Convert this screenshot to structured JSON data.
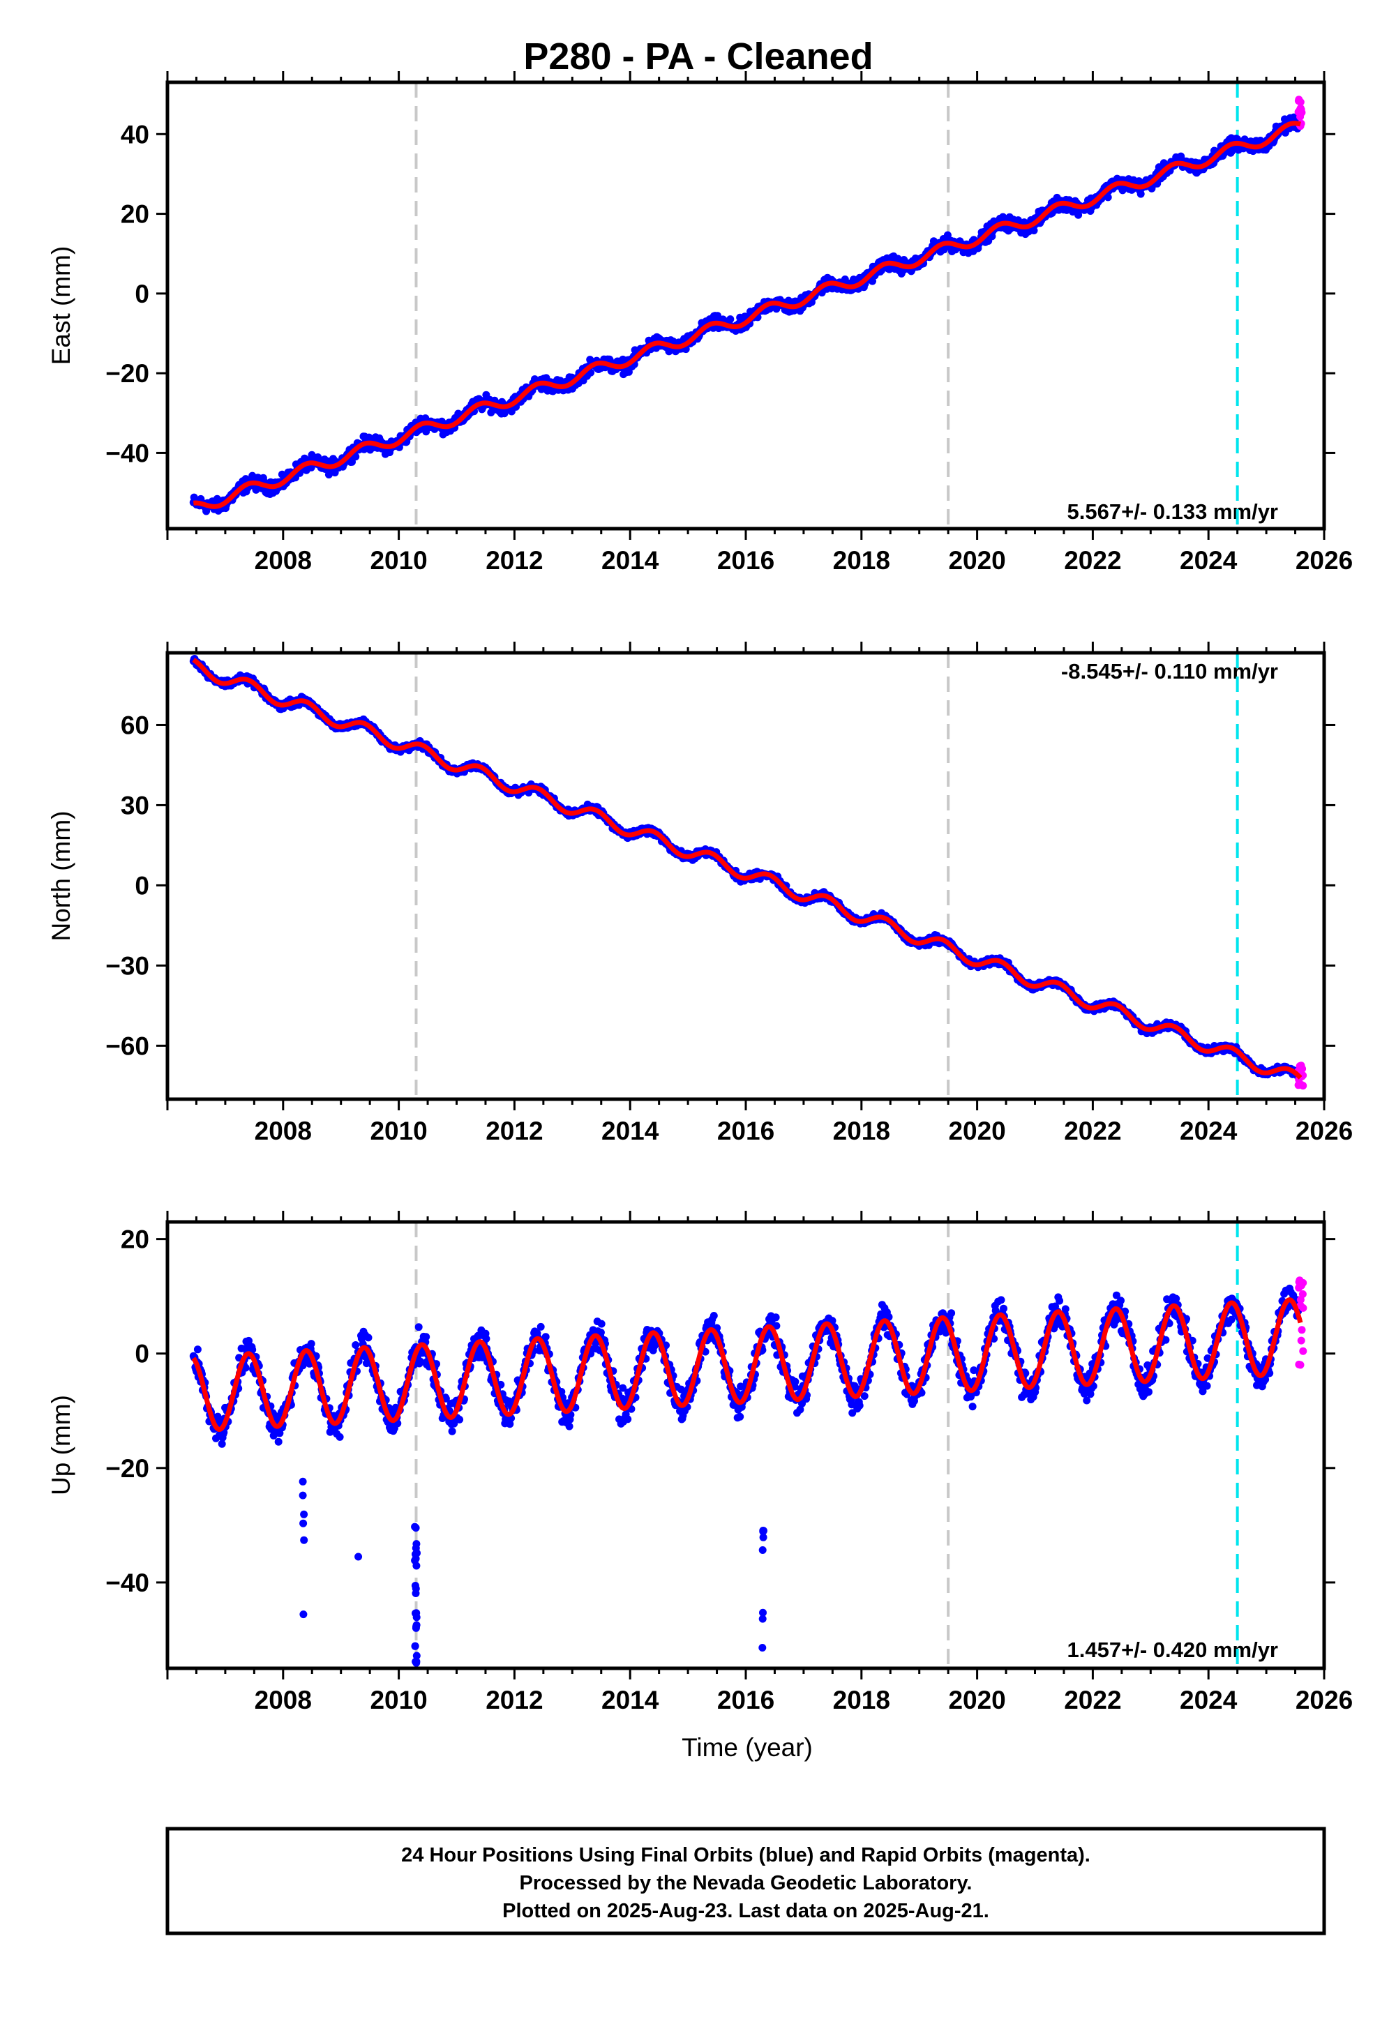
{
  "chart_data": {
    "type": "scatter",
    "title": "P280  - PA - Cleaned",
    "xlabel": "Time (year)",
    "xlim": [
      2006.0,
      2026.0
    ],
    "x_ticks": [
      "2008",
      "2010",
      "2012",
      "2014",
      "2016",
      "2018",
      "2020",
      "2022",
      "2024",
      "2026"
    ],
    "vertical_lines": [
      {
        "x": 2010.3,
        "color": "#c8c8c8"
      },
      {
        "x": 2019.5,
        "color": "#c8c8c8"
      },
      {
        "x": 2024.5,
        "color": "#00e5ee"
      }
    ],
    "colors": {
      "final": "#0000ff",
      "rapid": "#ff00ff",
      "model": "#ff0000",
      "frame": "#000000"
    },
    "panels": [
      {
        "ylabel": "East (mm)",
        "ylim": [
          -59,
          53
        ],
        "y_ticks": [
          "40",
          "20",
          "0",
          "−20",
          "−40"
        ],
        "y_tick_values": [
          40,
          20,
          0,
          -20,
          -40
        ],
        "rate": "5.567+/- 0.133 mm/yr",
        "rate_pos": "bottom-right",
        "trend": {
          "start": [
            2006.45,
            -54
          ],
          "end": [
            2025.6,
            42
          ]
        },
        "seasonal_amplitude": 1.5,
        "scatter_spread": 2.5,
        "rapid": {
          "x_start": 2025.55,
          "x_end": 2025.65,
          "y_range": [
            42,
            49
          ]
        }
      },
      {
        "ylabel": "North (mm)",
        "ylim": [
          -80,
          87
        ],
        "y_ticks": [
          "60",
          "30",
          "0",
          "−30",
          "−60"
        ],
        "y_tick_values": [
          60,
          30,
          0,
          -30,
          -60
        ],
        "rate": "-8.545+/- 0.110 mm/yr",
        "rate_pos": "top-right",
        "trend": {
          "start": [
            2006.45,
            82
          ],
          "end": [
            2025.6,
            -73
          ]
        },
        "seasonal_amplitude": 2.5,
        "scatter_spread": 2.0,
        "rapid": {
          "x_start": 2025.55,
          "x_end": 2025.65,
          "y_range": [
            -75,
            -67
          ]
        }
      },
      {
        "ylabel": "Up (mm)",
        "ylim": [
          -55,
          23
        ],
        "y_ticks": [
          "20",
          "0",
          "−20",
          "−40"
        ],
        "y_tick_values": [
          20,
          0,
          -20,
          -40
        ],
        "rate": "1.457+/- 0.420 mm/yr",
        "rate_pos": "bottom-right",
        "trend": {
          "start": [
            2006.45,
            -7
          ],
          "end": [
            2025.6,
            3
          ]
        },
        "seasonal_amplitude": 6.5,
        "scatter_spread": 4.0,
        "rapid": {
          "x_start": 2025.55,
          "x_end": 2025.65,
          "y_range": [
            -3,
            13
          ]
        }
      }
    ]
  },
  "footer": {
    "line1": "24 Hour Positions Using Final Orbits (blue) and Rapid Orbits (magenta).",
    "line2": "Processed by the Nevada Geodetic Laboratory.",
    "line3": "Plotted on 2025-Aug-23. Last data on 2025-Aug-21."
  }
}
